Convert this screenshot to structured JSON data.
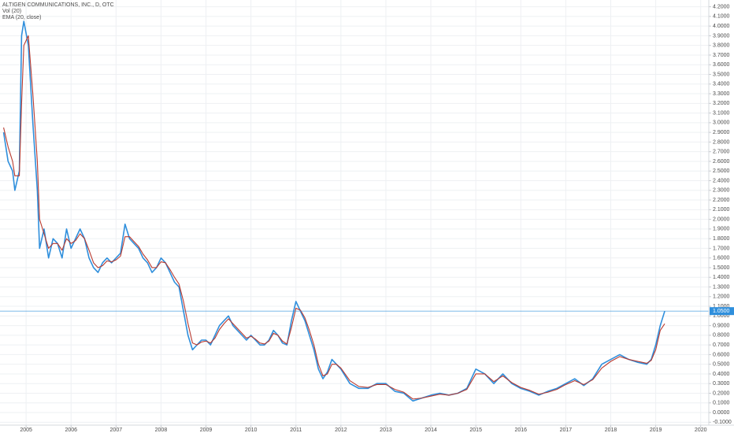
{
  "chart_data": {
    "type": "line",
    "title": "ALTIGEN COMMUNICATIONS, INC., D, OTC",
    "volume_label": "Vol (20)",
    "x": [
      2004.5,
      2004.6,
      2004.7,
      2004.75,
      2004.85,
      2004.9,
      2004.95,
      2005.05,
      2005.15,
      2005.25,
      2005.3,
      2005.4,
      2005.5,
      2005.6,
      2005.7,
      2005.8,
      2005.9,
      2006.0,
      2006.1,
      2006.2,
      2006.3,
      2006.4,
      2006.5,
      2006.6,
      2006.7,
      2006.8,
      2006.9,
      2007.0,
      2007.1,
      2007.2,
      2007.3,
      2007.4,
      2007.5,
      2007.6,
      2007.7,
      2007.8,
      2007.9,
      2008.0,
      2008.1,
      2008.2,
      2008.3,
      2008.4,
      2008.5,
      2008.6,
      2008.7,
      2008.8,
      2008.9,
      2009.0,
      2009.1,
      2009.2,
      2009.3,
      2009.4,
      2009.5,
      2009.6,
      2009.7,
      2009.8,
      2009.9,
      2010.0,
      2010.1,
      2010.2,
      2010.3,
      2010.4,
      2010.5,
      2010.6,
      2010.7,
      2010.8,
      2010.9,
      2011.0,
      2011.1,
      2011.2,
      2011.3,
      2011.4,
      2011.5,
      2011.6,
      2011.7,
      2011.8,
      2011.9,
      2012.0,
      2012.2,
      2012.4,
      2012.6,
      2012.8,
      2013.0,
      2013.2,
      2013.4,
      2013.6,
      2013.8,
      2014.0,
      2014.2,
      2014.4,
      2014.6,
      2014.8,
      2015.0,
      2015.2,
      2015.4,
      2015.6,
      2015.8,
      2016.0,
      2016.2,
      2016.4,
      2016.6,
      2016.8,
      2017.0,
      2017.2,
      2017.4,
      2017.6,
      2017.8,
      2018.0,
      2018.2,
      2018.4,
      2018.6,
      2018.8,
      2018.9,
      2019.0,
      2019.1,
      2019.2
    ],
    "series": [
      {
        "color": "#2f8fdc",
        "values": [
          2.9,
          2.6,
          2.5,
          2.3,
          2.5,
          3.9,
          4.05,
          3.8,
          3.0,
          2.3,
          1.7,
          1.9,
          1.6,
          1.8,
          1.75,
          1.6,
          1.9,
          1.7,
          1.8,
          1.9,
          1.8,
          1.6,
          1.5,
          1.45,
          1.55,
          1.6,
          1.55,
          1.6,
          1.65,
          1.95,
          1.8,
          1.75,
          1.7,
          1.6,
          1.55,
          1.45,
          1.5,
          1.6,
          1.55,
          1.45,
          1.35,
          1.3,
          1.05,
          0.8,
          0.65,
          0.7,
          0.75,
          0.75,
          0.7,
          0.8,
          0.9,
          0.95,
          1.0,
          0.9,
          0.85,
          0.8,
          0.75,
          0.8,
          0.75,
          0.7,
          0.7,
          0.75,
          0.85,
          0.8,
          0.72,
          0.7,
          0.95,
          1.15,
          1.05,
          0.95,
          0.8,
          0.65,
          0.45,
          0.35,
          0.42,
          0.55,
          0.5,
          0.45,
          0.3,
          0.25,
          0.25,
          0.3,
          0.3,
          0.22,
          0.2,
          0.12,
          0.15,
          0.18,
          0.2,
          0.18,
          0.2,
          0.25,
          0.45,
          0.4,
          0.3,
          0.4,
          0.3,
          0.25,
          0.22,
          0.18,
          0.22,
          0.25,
          0.3,
          0.35,
          0.28,
          0.35,
          0.5,
          0.55,
          0.6,
          0.55,
          0.52,
          0.5,
          0.55,
          0.7,
          0.9,
          1.05
        ]
      },
      {
        "name": "EMA (20, close)",
        "color": "#b83a30",
        "values": [
          2.95,
          2.75,
          2.6,
          2.45,
          2.45,
          3.2,
          3.8,
          3.9,
          3.3,
          2.6,
          2.0,
          1.85,
          1.7,
          1.75,
          1.75,
          1.68,
          1.8,
          1.75,
          1.78,
          1.85,
          1.8,
          1.68,
          1.55,
          1.5,
          1.52,
          1.57,
          1.56,
          1.58,
          1.62,
          1.82,
          1.82,
          1.77,
          1.72,
          1.64,
          1.58,
          1.5,
          1.5,
          1.56,
          1.55,
          1.48,
          1.4,
          1.33,
          1.15,
          0.92,
          0.72,
          0.7,
          0.73,
          0.74,
          0.72,
          0.77,
          0.86,
          0.92,
          0.97,
          0.92,
          0.87,
          0.82,
          0.77,
          0.79,
          0.76,
          0.72,
          0.71,
          0.74,
          0.82,
          0.8,
          0.74,
          0.71,
          0.88,
          1.08,
          1.06,
          0.98,
          0.85,
          0.7,
          0.5,
          0.38,
          0.4,
          0.5,
          0.5,
          0.46,
          0.33,
          0.27,
          0.26,
          0.29,
          0.29,
          0.24,
          0.21,
          0.14,
          0.15,
          0.17,
          0.19,
          0.18,
          0.2,
          0.24,
          0.4,
          0.4,
          0.32,
          0.38,
          0.31,
          0.26,
          0.23,
          0.19,
          0.21,
          0.24,
          0.29,
          0.33,
          0.29,
          0.34,
          0.46,
          0.53,
          0.58,
          0.55,
          0.53,
          0.51,
          0.54,
          0.65,
          0.85,
          0.92
        ]
      }
    ],
    "last_price": {
      "value": 1.05,
      "label": "1.0500"
    },
    "xlim": [
      2004.42,
      2020.18
    ],
    "xticks": [
      2005,
      2006,
      2007,
      2008,
      2009,
      2010,
      2011,
      2012,
      2013,
      2014,
      2015,
      2016,
      2017,
      2018,
      2019,
      2020
    ],
    "ylim": [
      -0.13,
      4.27
    ],
    "yticks": [
      {
        "value": -0.1,
        "label": "-0.1000"
      },
      {
        "value": 0,
        "label": "0.0000"
      },
      {
        "value": 0.1,
        "label": "0.1000"
      },
      {
        "value": 0.2,
        "label": "0.2000"
      },
      {
        "value": 0.3,
        "label": "0.3000"
      },
      {
        "value": 0.4,
        "label": "0.4000"
      },
      {
        "value": 0.5,
        "label": "0.5000"
      },
      {
        "value": 0.6,
        "label": "0.6000"
      },
      {
        "value": 0.7,
        "label": "0.7000"
      },
      {
        "value": 0.8,
        "label": "0.8000"
      },
      {
        "value": 0.9,
        "label": "0.9000"
      },
      {
        "value": 1.0,
        "label": "1.0000"
      },
      {
        "value": 1.1,
        "label": "1.1000"
      },
      {
        "value": 1.2,
        "label": "1.2000"
      },
      {
        "value": 1.3,
        "label": "1.3000"
      },
      {
        "value": 1.4,
        "label": "1.4000"
      },
      {
        "value": 1.5,
        "label": "1.5000"
      },
      {
        "value": 1.6,
        "label": "1.6000"
      },
      {
        "value": 1.7,
        "label": "1.7000"
      },
      {
        "value": 1.8,
        "label": "1.8000"
      },
      {
        "value": 1.9,
        "label": "1.9000"
      },
      {
        "value": 2.0,
        "label": "2.0000"
      },
      {
        "value": 2.1,
        "label": "2.1000"
      },
      {
        "value": 2.2,
        "label": "2.2000"
      },
      {
        "value": 2.3,
        "label": "2.3000"
      },
      {
        "value": 2.4,
        "label": "2.4000"
      },
      {
        "value": 2.5,
        "label": "2.5000"
      },
      {
        "value": 2.6,
        "label": "2.6000"
      },
      {
        "value": 2.7,
        "label": "2.7000"
      },
      {
        "value": 2.8,
        "label": "2.8000"
      },
      {
        "value": 2.9,
        "label": "2.9000"
      },
      {
        "value": 3.0,
        "label": "3.0000"
      },
      {
        "value": 3.1,
        "label": "3.1000"
      },
      {
        "value": 3.2,
        "label": "3.2000"
      },
      {
        "value": 3.3,
        "label": "3.3000"
      },
      {
        "value": 3.4,
        "label": "3.4000"
      },
      {
        "value": 3.5,
        "label": "3.5000"
      },
      {
        "value": 3.6,
        "label": "3.6000"
      },
      {
        "value": 3.7,
        "label": "3.7000"
      },
      {
        "value": 3.8,
        "label": "3.8000"
      },
      {
        "value": 3.9,
        "label": "3.9000"
      },
      {
        "value": 4.0,
        "label": "4.0000"
      },
      {
        "value": 4.1,
        "label": "4.1000"
      },
      {
        "value": 4.2,
        "label": "4.2000"
      }
    ],
    "grid": true
  }
}
